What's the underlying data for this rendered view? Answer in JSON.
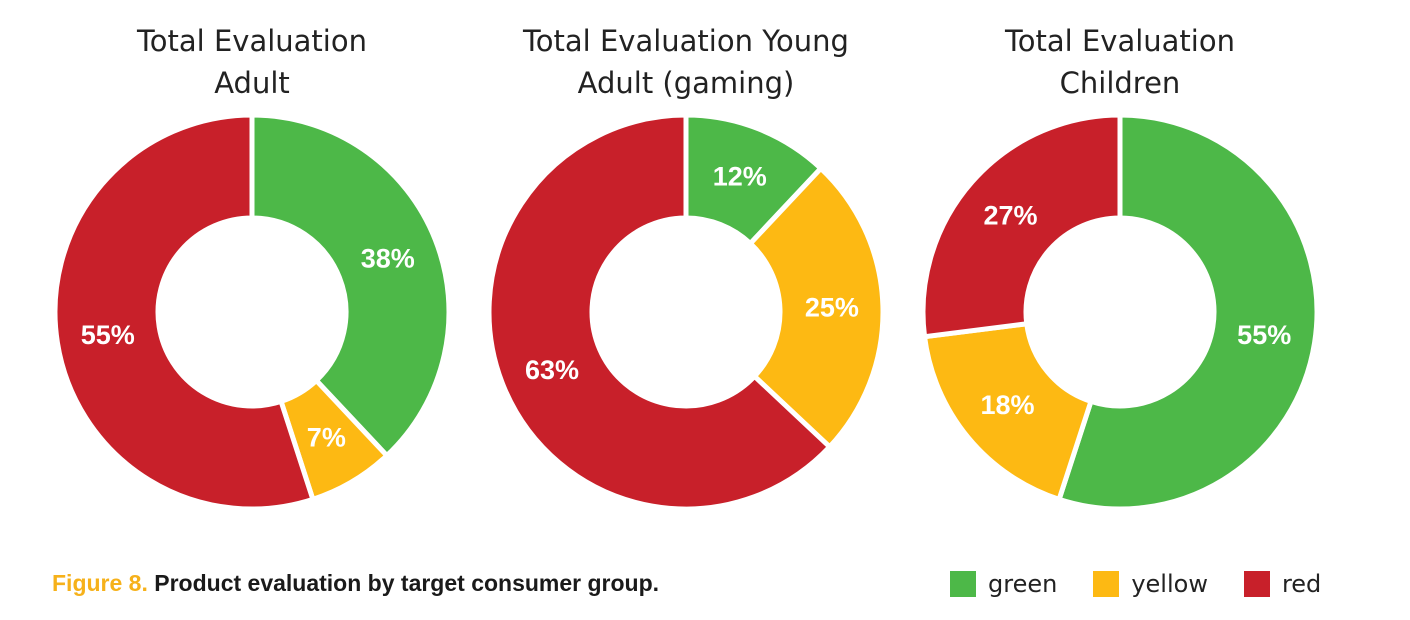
{
  "colors": {
    "green": "#4db848",
    "yellow": "#fdb913",
    "red": "#c8202a"
  },
  "chart_data": [
    {
      "type": "pie",
      "variant": "donut",
      "title": [
        "Total Evaluation",
        "Adult"
      ],
      "slices": [
        {
          "category": "green",
          "value": 38,
          "label": "38%"
        },
        {
          "category": "yellow",
          "value": 7,
          "label": "7%"
        },
        {
          "category": "red",
          "value": 55,
          "label": "55%"
        }
      ]
    },
    {
      "type": "pie",
      "variant": "donut",
      "title": [
        "Total Evaluation Young",
        "Adult (gaming)"
      ],
      "slices": [
        {
          "category": "green",
          "value": 12,
          "label": "12%"
        },
        {
          "category": "yellow",
          "value": 25,
          "label": "25%"
        },
        {
          "category": "red",
          "value": 63,
          "label": "63%"
        }
      ]
    },
    {
      "type": "pie",
      "variant": "donut",
      "title": [
        "Total Evaluation",
        "Children"
      ],
      "slices": [
        {
          "category": "green",
          "value": 55,
          "label": "55%"
        },
        {
          "category": "yellow",
          "value": 18,
          "label": "18%"
        },
        {
          "category": "red",
          "value": 27,
          "label": "27%"
        }
      ]
    }
  ],
  "caption": {
    "figure_label": "Figure 8.",
    "text": "Product evaluation by target consumer group."
  },
  "legend": [
    {
      "category": "green",
      "label": "green"
    },
    {
      "category": "yellow",
      "label": "yellow"
    },
    {
      "category": "red",
      "label": "red"
    }
  ]
}
